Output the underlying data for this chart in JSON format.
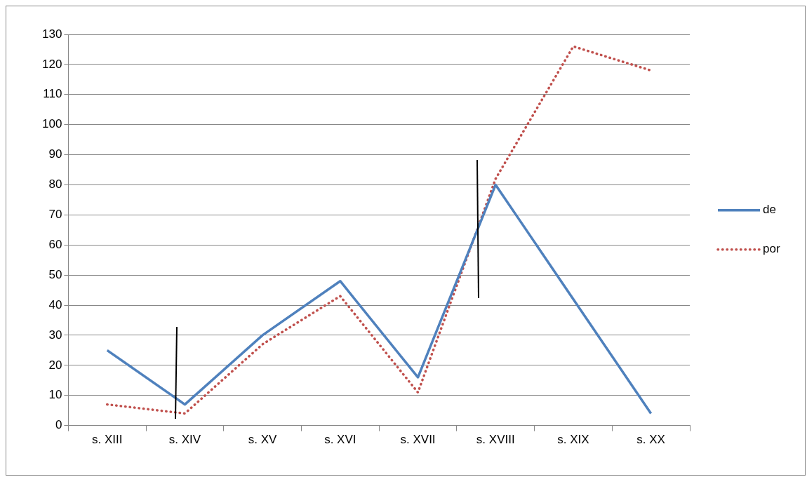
{
  "chart_data": {
    "type": "line",
    "categories": [
      "s. XIII",
      "s. XIV",
      "s. XV",
      "s. XVI",
      "s. XVII",
      "s. XVIII",
      "s. XIX",
      "s. XX"
    ],
    "series": [
      {
        "name": "de",
        "color": "#4f81bd",
        "line_style": "solid",
        "values": [
          25,
          7,
          30,
          48,
          16,
          80,
          42,
          4
        ]
      },
      {
        "name": "por",
        "color": "#c0504d",
        "line_style": "dotted",
        "values": [
          7,
          4,
          27,
          43,
          11,
          82,
          126,
          118
        ]
      }
    ],
    "ylim": [
      0,
      130
    ],
    "yticks": [
      0,
      10,
      20,
      30,
      40,
      50,
      60,
      70,
      80,
      90,
      100,
      110,
      120,
      130
    ],
    "grid": "y",
    "legend": "right",
    "marker": "none"
  }
}
